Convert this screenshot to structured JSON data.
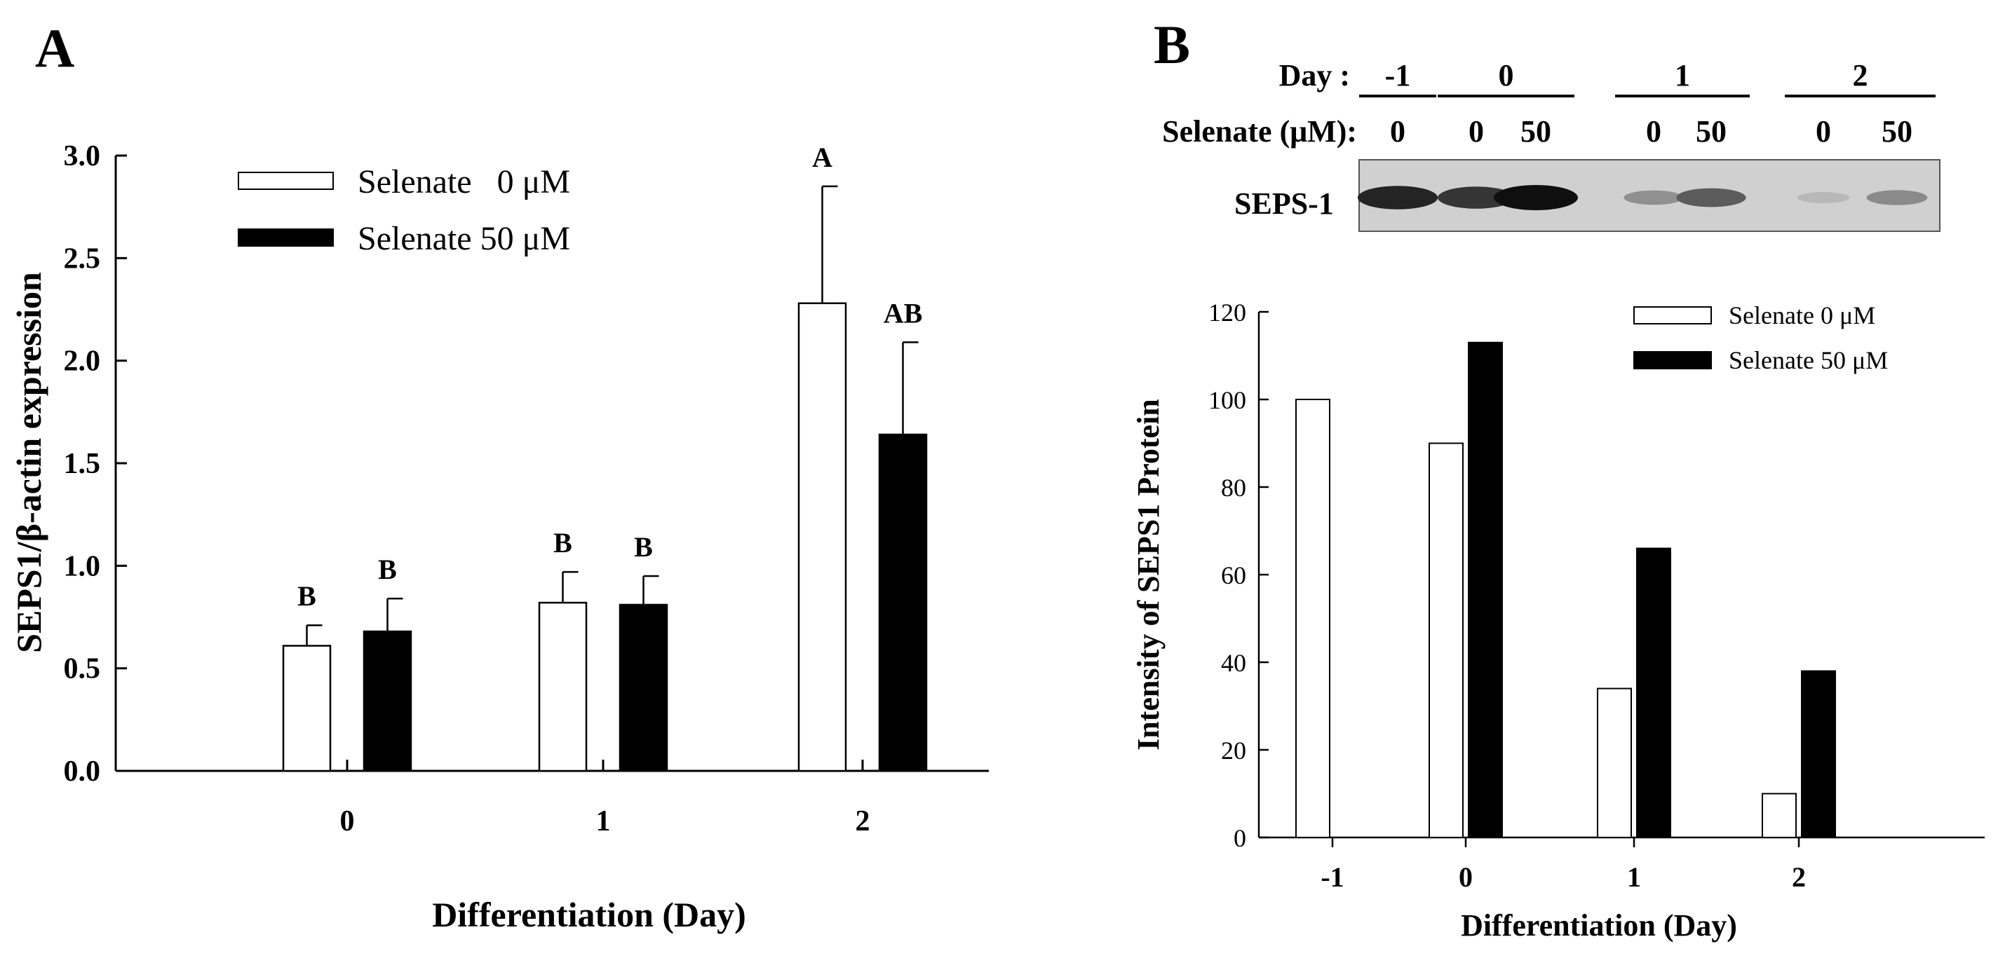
{
  "panels": {
    "a_label": "A",
    "b_label": "B"
  },
  "colors": {
    "selenate_0": "#ffffff",
    "selenate_50": "#000000",
    "stroke": "#000000"
  },
  "chart_data": [
    {
      "type": "bar",
      "panel": "A",
      "xlabel": "Differentiation (Day)",
      "ylabel": "SEPS1/β-actin expression",
      "categories": [
        "0",
        "1",
        "2"
      ],
      "ylim": [
        0,
        3.0
      ],
      "yticks": [
        "0.0",
        "0.5",
        "1.0",
        "1.5",
        "2.0",
        "2.5",
        "3.0"
      ],
      "legend": {
        "placement": "top-left",
        "entries": [
          "Selenate   0 μM",
          "Selenate 50 μM"
        ]
      },
      "series": [
        {
          "name": "Selenate   0 μM",
          "values": [
            0.61,
            0.82,
            2.28
          ],
          "errors": [
            0.1,
            0.15,
            0.57
          ],
          "labels": [
            "B",
            "B",
            "A"
          ]
        },
        {
          "name": "Selenate 50 μM",
          "values": [
            0.68,
            0.81,
            1.64
          ],
          "errors": [
            0.16,
            0.14,
            0.45
          ],
          "labels": [
            "B",
            "B",
            "AB"
          ]
        }
      ]
    },
    {
      "type": "bar",
      "panel": "B",
      "xlabel": "Differentiation (Day)",
      "ylabel": "Intensity of SEPS1 Protein",
      "categories": [
        "-1",
        "0",
        "1",
        "2"
      ],
      "ylim": [
        0,
        120
      ],
      "yticks": [
        "0",
        "20",
        "40",
        "60",
        "80",
        "100",
        "120"
      ],
      "legend": {
        "placement": "top-right",
        "entries": [
          "Selenate 0 μM",
          "Selenate 50 μM"
        ]
      },
      "series": [
        {
          "name": "Selenate 0 μM",
          "values": [
            100,
            90,
            34,
            10
          ]
        },
        {
          "name": "Selenate 50 μM",
          "values": [
            null,
            113,
            66,
            38
          ]
        }
      ]
    }
  ],
  "blot": {
    "day_label": "Day :",
    "selenate_label": "Selenate (μM):",
    "band_label": "SEPS-1",
    "days": [
      "-1",
      "0",
      "1",
      "2"
    ],
    "lanes": [
      {
        "dose": "0",
        "intensity": 100
      },
      {
        "dose": "0",
        "intensity": 90
      },
      {
        "dose": "50",
        "intensity": 113
      },
      {
        "dose": "0",
        "intensity": 34
      },
      {
        "dose": "50",
        "intensity": 66
      },
      {
        "dose": "0",
        "intensity": 10
      },
      {
        "dose": "50",
        "intensity": 38
      }
    ]
  }
}
